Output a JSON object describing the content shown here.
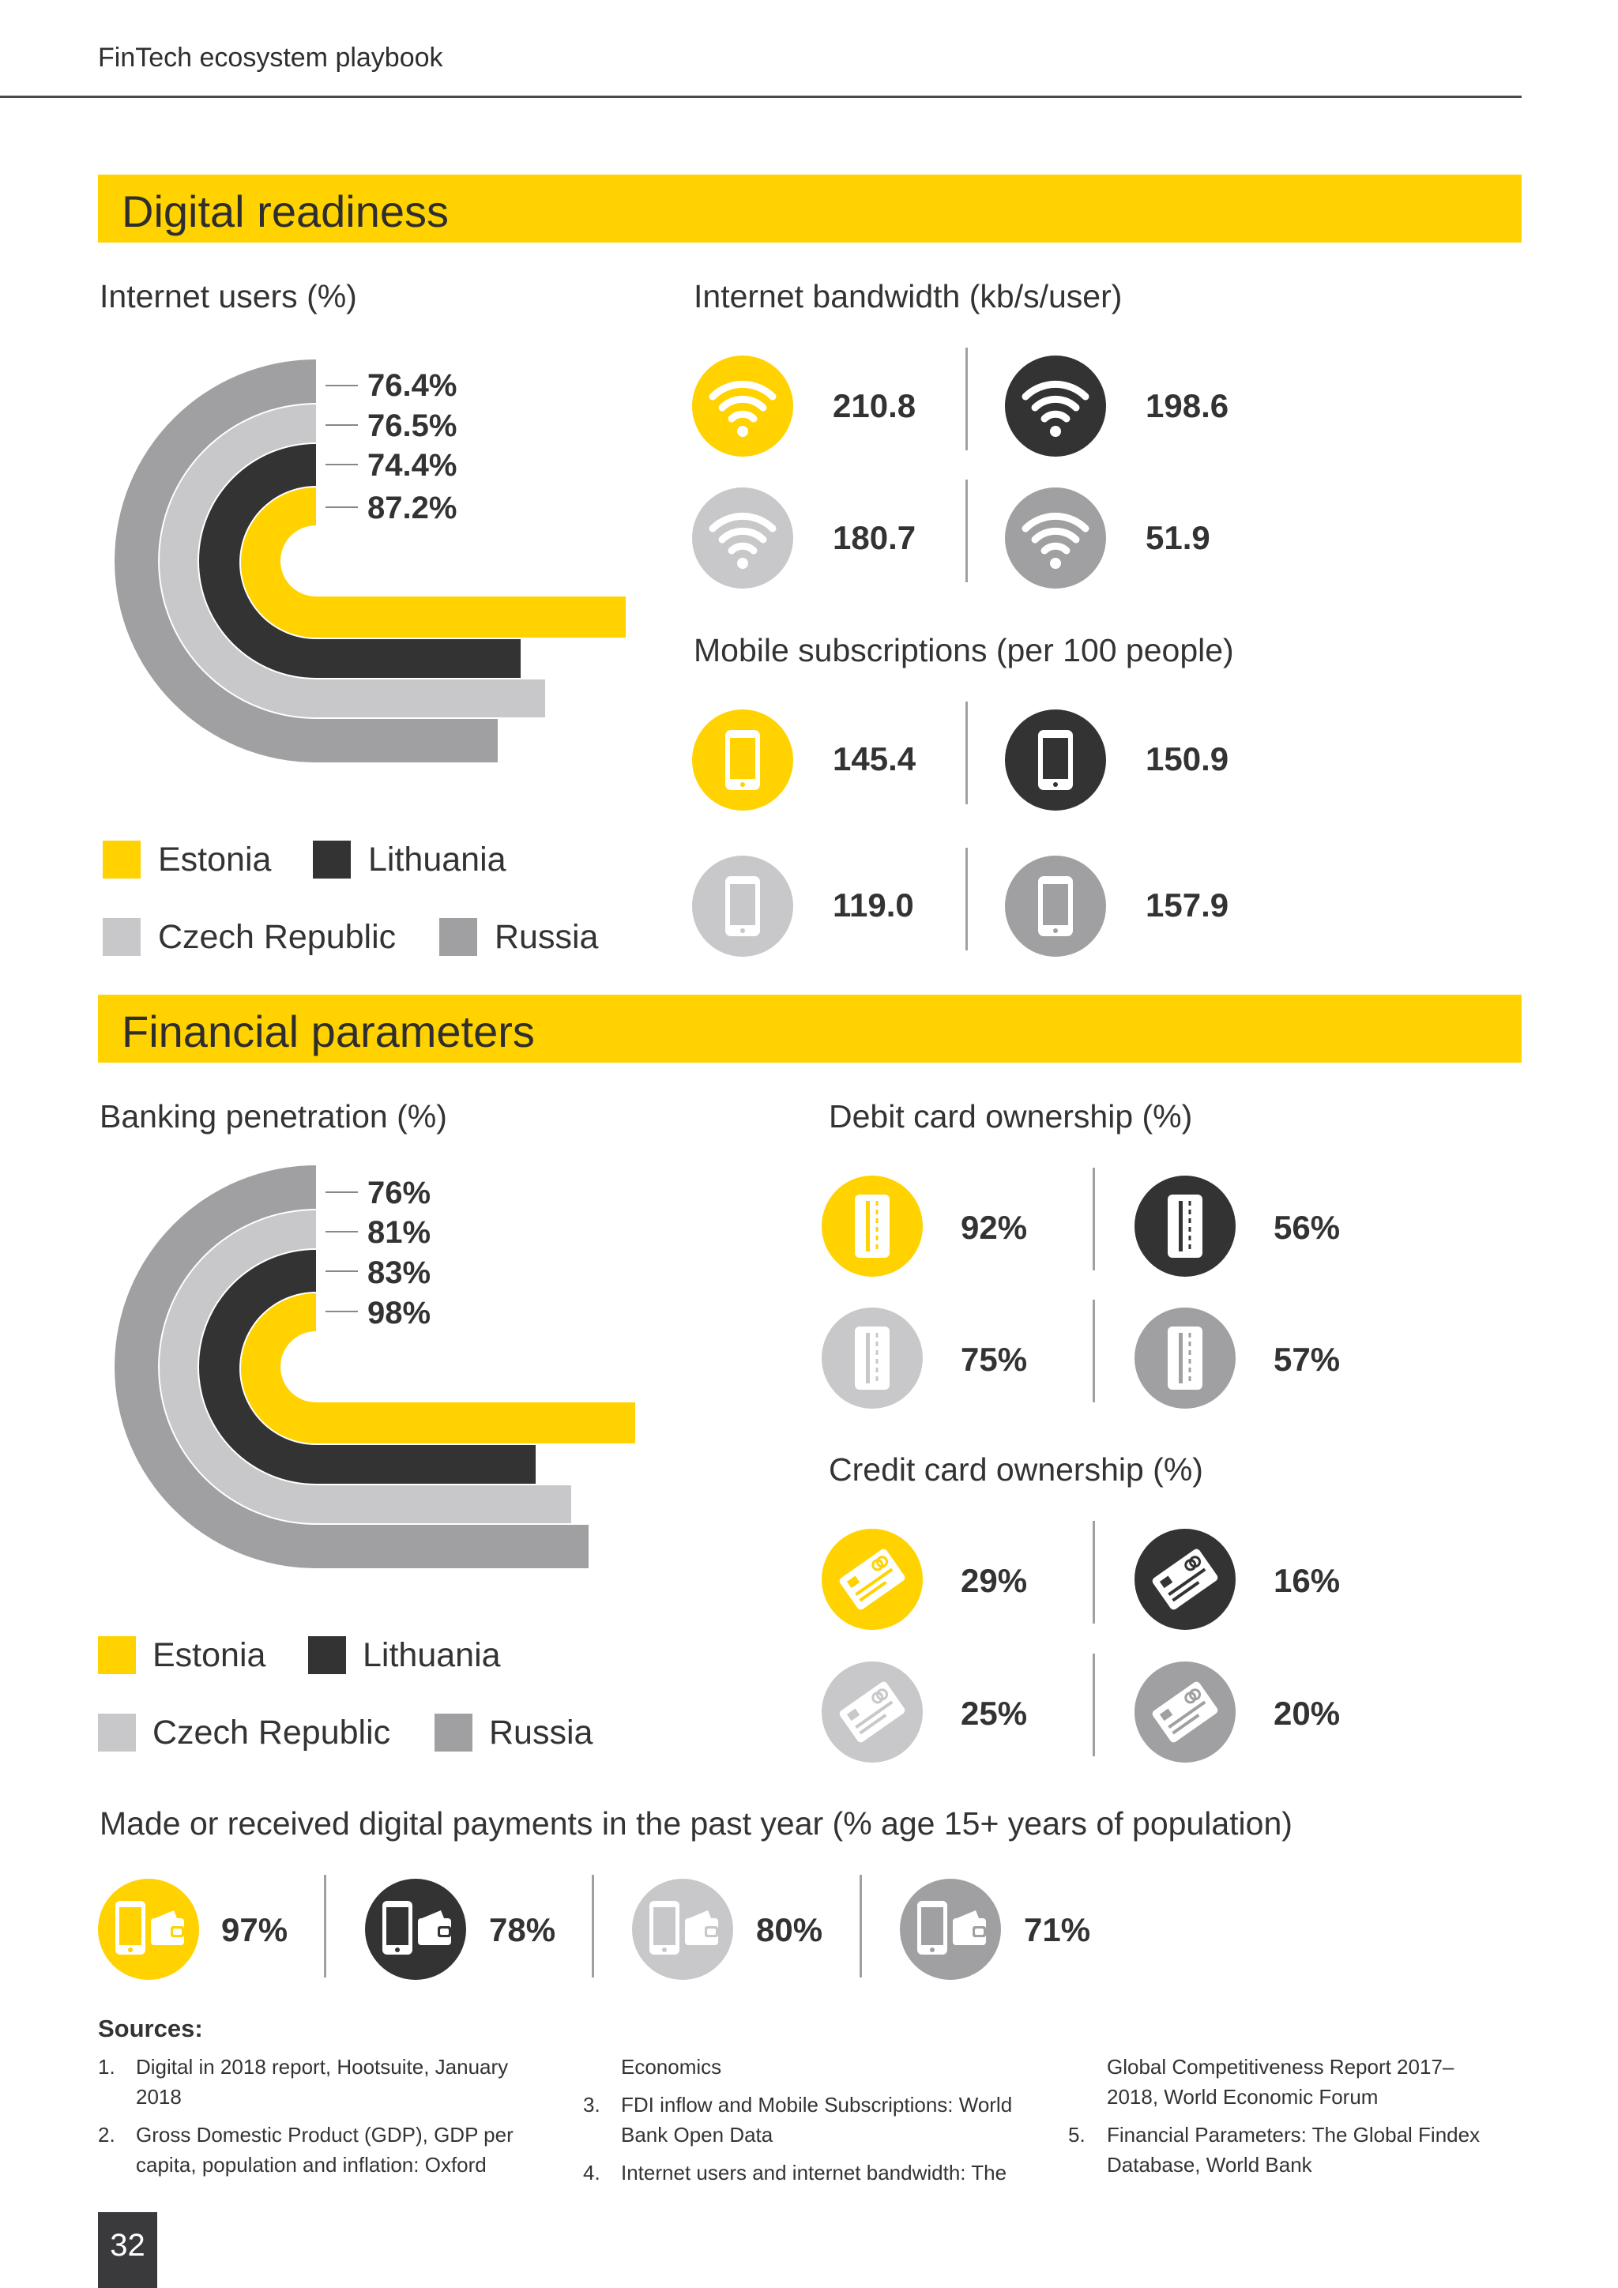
{
  "header": {
    "title": "FinTech ecosystem playbook"
  },
  "colors": {
    "estonia": "#ffd200",
    "lithuania": "#333334",
    "czech": "#c8c8ca",
    "russia": "#a0a0a2",
    "band": "#ffd200"
  },
  "digital": {
    "title": "Digital readiness",
    "internet_users": {
      "title": "Internet users (%)",
      "labels": [
        "76.4%",
        "76.5%",
        "74.4%",
        "87.2%"
      ]
    },
    "legend": {
      "estonia": "Estonia",
      "lithuania": "Lithuania",
      "czech": "Czech Republic",
      "russia": "Russia"
    },
    "bandwidth": {
      "title": "Internet bandwidth (kb/s/user)",
      "icon": "wifi-icon",
      "values": [
        "210.8",
        "198.6",
        "180.7",
        "51.9"
      ]
    },
    "mobile": {
      "title": "Mobile subscriptions (per 100 people)",
      "icon": "smartphone-icon",
      "values": [
        "145.4",
        "150.9",
        "119.0",
        "157.9"
      ]
    }
  },
  "financial": {
    "title": "Financial parameters",
    "banking": {
      "title": "Banking penetration (%)",
      "labels": [
        "76%",
        "81%",
        "83%",
        "98%"
      ]
    },
    "legend": {
      "estonia": "Estonia",
      "lithuania": "Lithuania",
      "czech": "Czech Republic",
      "russia": "Russia"
    },
    "debit": {
      "title": "Debit card ownership (%)",
      "icon": "debit-card-icon",
      "values": [
        "92%",
        "56%",
        "75%",
        "57%"
      ]
    },
    "credit": {
      "title": "Credit card ownership (%)",
      "icon": "credit-card-icon",
      "values": [
        "29%",
        "16%",
        "25%",
        "20%"
      ]
    },
    "payments": {
      "title": "Made or received digital payments in the past year (% age 15+ years of population)",
      "icon": "phone-wallet-icon",
      "values": [
        "97%",
        "78%",
        "80%",
        "71%"
      ]
    }
  },
  "sources": {
    "title": "Sources:",
    "items": [
      {
        "num": "1.",
        "lines": [
          "Digital in 2018 report, Hootsuite, January",
          "2018"
        ]
      },
      {
        "num": "2.",
        "lines": [
          "Gross Domestic Product (GDP), GDP per",
          "capita, population and inflation: Oxford"
        ]
      },
      {
        "num": "",
        "lines": [
          "Economics"
        ]
      },
      {
        "num": "3.",
        "lines": [
          "FDI inflow and Mobile Subscriptions: World",
          "Bank Open Data"
        ]
      },
      {
        "num": "4.",
        "lines": [
          "Internet users and internet bandwidth: The"
        ]
      },
      {
        "num": "",
        "lines": [
          "Global Competitiveness Report 2017–",
          "2018, World Economic Forum"
        ]
      },
      {
        "num": "5.",
        "lines": [
          "Financial Parameters: The Global Findex",
          "Database, World Bank"
        ]
      }
    ]
  },
  "page_number": "32"
}
